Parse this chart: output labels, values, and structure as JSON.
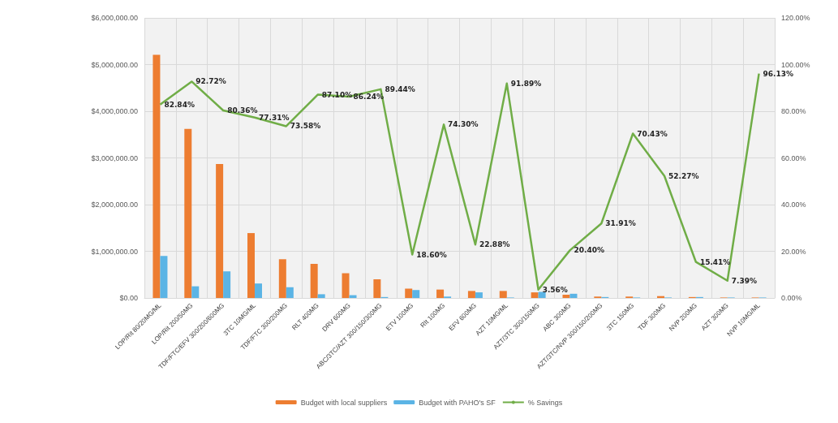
{
  "chart_data": {
    "type": "bar",
    "categories": [
      "LOP/Rit 80/20MG/ML",
      "LOP/Rit 200/50MG",
      "TDF/FTC/EFV 300/200/600MG",
      "3TC 10MG/ML",
      "TDF/FTC 300/200MG",
      "RLT 400MG",
      "DRV 600MG",
      "ABC/3TC/AZT 300/150/300MG",
      "ETV 100MG",
      "RIt 100MG",
      "EFV 600MG",
      "AZT 10MG/ML",
      "AZT/3TC 300/150MG",
      "ABC 300MG",
      "AZT/3TC/NVP 300/150/200MG",
      "3TC 150MG",
      "TDF 300MG",
      "NVP 200MG",
      "AZT 300MG",
      "NVP 10MG/ML"
    ],
    "series": [
      {
        "name": "Budget with local suppliers",
        "color": "#ed7d31",
        "values": [
          5210000,
          3620000,
          2870000,
          1390000,
          830000,
          730000,
          530000,
          400000,
          200000,
          180000,
          150000,
          150000,
          120000,
          70000,
          30000,
          30000,
          40000,
          20000,
          10000,
          10000
        ]
      },
      {
        "name": "Budget with PAHO's SF",
        "color": "#5bb4e5",
        "values": [
          900000,
          250000,
          570000,
          310000,
          230000,
          80000,
          60000,
          20000,
          170000,
          30000,
          120000,
          10000,
          130000,
          90000,
          20000,
          10000,
          10000,
          20000,
          10000,
          10000
        ]
      },
      {
        "name": "% Savings",
        "type": "line",
        "axis": "y2",
        "color": "#70ad47",
        "values": [
          82.84,
          92.72,
          80.36,
          77.31,
          73.58,
          87.1,
          86.24,
          89.44,
          18.6,
          74.3,
          22.88,
          91.89,
          3.56,
          20.4,
          31.91,
          70.43,
          52.27,
          15.41,
          7.39,
          96.13
        ],
        "value_labels": [
          "82.84%",
          "92.72%",
          "80.36%",
          "77.31%",
          "73.58%",
          "87.10%",
          "86.24%",
          "89.44%",
          "18.60%",
          "74.30%",
          "22.88%",
          "91.89%",
          "3.56%",
          "20.40%",
          "31.91%",
          "70.43%",
          "52.27%",
          "15.41%",
          "7.39%",
          "96.13%"
        ]
      }
    ],
    "ylim": [
      0,
      6000000
    ],
    "yticks": [
      {
        "value": 0,
        "label": "$0.00"
      },
      {
        "value": 1000000,
        "label": "$1,000,000.00"
      },
      {
        "value": 2000000,
        "label": "$2,000,000.00"
      },
      {
        "value": 3000000,
        "label": "$3,000,000.00"
      },
      {
        "value": 4000000,
        "label": "$4,000,000.00"
      },
      {
        "value": 5000000,
        "label": "$5,000,000.00"
      },
      {
        "value": 6000000,
        "label": "$6,000,000.00"
      }
    ],
    "y2lim": [
      0,
      120
    ],
    "y2ticks": [
      {
        "value": 0,
        "label": "0.00%"
      },
      {
        "value": 20,
        "label": "20.00%"
      },
      {
        "value": 40,
        "label": "40.00%"
      },
      {
        "value": 60,
        "label": "60.00%"
      },
      {
        "value": 80,
        "label": "80.00%"
      },
      {
        "value": 100,
        "label": "100.00%"
      },
      {
        "value": 120,
        "label": "120.00%"
      }
    ],
    "grid": true,
    "legend": "bottom",
    "marker": "none",
    "line_style": "solid"
  }
}
